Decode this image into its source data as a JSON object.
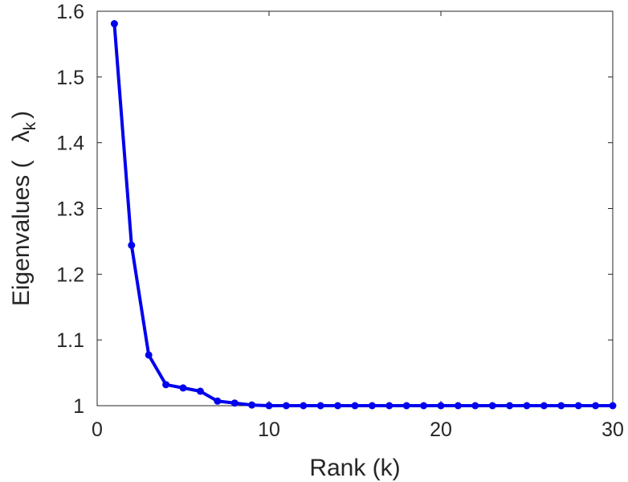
{
  "chart_data": {
    "type": "line",
    "xlabel": "Rank (k)",
    "ylabel": {
      "text": "Eigenvalues (",
      "symbol": "λ",
      "subscript": "k",
      "close": ")"
    },
    "xlim": [
      0,
      30
    ],
    "ylim": [
      1,
      1.6
    ],
    "xticks": [
      0,
      10,
      20,
      30
    ],
    "xtick_labels": [
      "0",
      "10",
      "20",
      "30"
    ],
    "yticks": [
      1,
      1.1,
      1.2,
      1.3,
      1.4,
      1.5,
      1.6
    ],
    "ytick_labels": [
      "1",
      "1.1",
      "1.2",
      "1.3",
      "1.4",
      "1.5",
      "1.6"
    ],
    "grid": false,
    "series": [
      {
        "color": "#0000ee",
        "marker": "circle",
        "x": [
          1,
          2,
          3,
          4,
          5,
          6,
          7,
          8,
          9,
          10,
          11,
          12,
          13,
          14,
          15,
          16,
          17,
          18,
          19,
          20,
          21,
          22,
          23,
          24,
          25,
          26,
          27,
          28,
          29,
          30
        ],
        "values": [
          1.581,
          1.244,
          1.077,
          1.032,
          1.027,
          1.022,
          1.007,
          1.004,
          1.001,
          1.0,
          1.0,
          1.0,
          1.0,
          1.0,
          1.0,
          1.0,
          1.0,
          1.0,
          1.0,
          1.0,
          1.0,
          1.0,
          1.0,
          1.0,
          1.0,
          1.0,
          1.0,
          1.0,
          1.0,
          1.0
        ]
      }
    ]
  }
}
